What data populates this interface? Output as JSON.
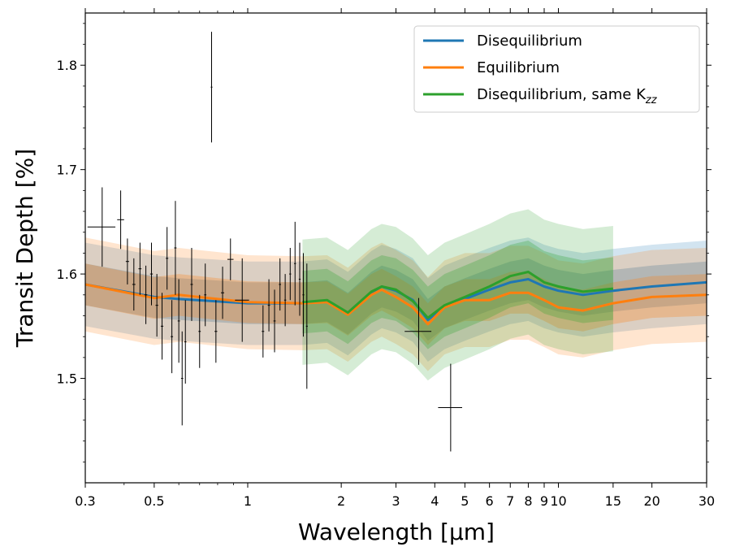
{
  "chart_data": {
    "type": "line",
    "x_scale": "log",
    "xlabel": "Wavelength [μm]",
    "ylabel": "Transit Depth [%]",
    "xlim": [
      0.3,
      30
    ],
    "ylim": [
      1.4,
      1.85
    ],
    "x_ticks": [
      {
        "value": 0.3,
        "label": "0.3"
      },
      {
        "value": 0.5,
        "label": "0.5"
      },
      {
        "value": 1,
        "label": "1"
      },
      {
        "value": 2,
        "label": "2"
      },
      {
        "value": 3,
        "label": "3"
      },
      {
        "value": 4,
        "label": "4"
      },
      {
        "value": 5,
        "label": "5"
      },
      {
        "value": 6,
        "label": "6"
      },
      {
        "value": 7,
        "label": "7"
      },
      {
        "value": 8,
        "label": "8"
      },
      {
        "value": 9,
        "label": "9"
      },
      {
        "value": 10,
        "label": "10"
      },
      {
        "value": 15,
        "label": "15"
      },
      {
        "value": 20,
        "label": "20"
      },
      {
        "value": 30,
        "label": "30"
      }
    ],
    "y_ticks": [
      {
        "value": 1.5,
        "label": "1.5"
      },
      {
        "value": 1.6,
        "label": "1.6"
      },
      {
        "value": 1.7,
        "label": "1.7"
      },
      {
        "value": 1.8,
        "label": "1.8"
      }
    ],
    "legend_position": "top-right",
    "series": [
      {
        "name": "Disequilibrium",
        "color": "#1f77b4",
        "x": [
          0.3,
          0.5,
          0.6,
          1.0,
          1.5,
          1.8,
          2.1,
          2.5,
          2.7,
          3.0,
          3.4,
          3.8,
          4.3,
          5.0,
          6.0,
          7.0,
          8.0,
          9.0,
          10.0,
          12.0,
          15.0,
          20.0,
          30.0
        ],
        "y": [
          1.59,
          1.578,
          1.576,
          1.572,
          1.572,
          1.574,
          1.562,
          1.582,
          1.588,
          1.584,
          1.575,
          1.556,
          1.568,
          1.576,
          1.585,
          1.592,
          1.595,
          1.588,
          1.584,
          1.58,
          1.584,
          1.588,
          1.592
        ],
        "band_inner": 0.02,
        "band_outer": 0.04
      },
      {
        "name": "Equilibrium",
        "color": "#ff7f0e",
        "x": [
          0.3,
          0.5,
          0.6,
          1.0,
          1.5,
          1.8,
          2.1,
          2.5,
          2.7,
          3.0,
          3.4,
          3.8,
          4.3,
          5.0,
          6.0,
          7.0,
          8.0,
          9.0,
          10.0,
          12.0,
          15.0,
          20.0,
          30.0
        ],
        "y": [
          1.59,
          1.577,
          1.58,
          1.573,
          1.572,
          1.573,
          1.561,
          1.58,
          1.585,
          1.578,
          1.568,
          1.552,
          1.568,
          1.575,
          1.575,
          1.582,
          1.582,
          1.575,
          1.568,
          1.565,
          1.572,
          1.578,
          1.58
        ],
        "band_inner": 0.02,
        "band_outer": 0.045
      },
      {
        "name": "Disequilibrium, same K",
        "name_sub": "zz",
        "color": "#2ca02c",
        "x": [
          1.5,
          1.8,
          2.1,
          2.5,
          2.7,
          3.0,
          3.4,
          3.8,
          4.3,
          5.0,
          6.0,
          7.0,
          8.0,
          9.0,
          10.0,
          12.0,
          15.0
        ],
        "y": [
          1.573,
          1.575,
          1.563,
          1.583,
          1.588,
          1.585,
          1.574,
          1.558,
          1.57,
          1.578,
          1.588,
          1.598,
          1.602,
          1.592,
          1.588,
          1.583,
          1.586
        ],
        "band_inner": 0.03,
        "band_outer": 0.06
      }
    ],
    "observations": [
      {
        "x": 0.34,
        "y": 1.645,
        "xerr": 0.035,
        "yerr": 0.038
      },
      {
        "x": 0.39,
        "y": 1.652,
        "xerr": 0.01,
        "yerr": 0.028
      },
      {
        "x": 0.41,
        "y": 1.612,
        "xerr": 0.005,
        "yerr": 0.022
      },
      {
        "x": 0.43,
        "y": 1.59,
        "xerr": 0.005,
        "yerr": 0.025
      },
      {
        "x": 0.45,
        "y": 1.605,
        "xerr": 0.005,
        "yerr": 0.025
      },
      {
        "x": 0.47,
        "y": 1.58,
        "xerr": 0.005,
        "yerr": 0.028
      },
      {
        "x": 0.49,
        "y": 1.6,
        "xerr": 0.005,
        "yerr": 0.03
      },
      {
        "x": 0.51,
        "y": 1.57,
        "xerr": 0.005,
        "yerr": 0.03
      },
      {
        "x": 0.53,
        "y": 1.55,
        "xerr": 0.005,
        "yerr": 0.032
      },
      {
        "x": 0.55,
        "y": 1.615,
        "xerr": 0.005,
        "yerr": 0.03
      },
      {
        "x": 0.57,
        "y": 1.54,
        "xerr": 0.005,
        "yerr": 0.035
      },
      {
        "x": 0.585,
        "y": 1.625,
        "xerr": 0.005,
        "yerr": 0.045
      },
      {
        "x": 0.6,
        "y": 1.555,
        "xerr": 0.005,
        "yerr": 0.04
      },
      {
        "x": 0.615,
        "y": 1.5,
        "xerr": 0.005,
        "yerr": 0.045
      },
      {
        "x": 0.63,
        "y": 1.535,
        "xerr": 0.005,
        "yerr": 0.04
      },
      {
        "x": 0.66,
        "y": 1.59,
        "xerr": 0.006,
        "yerr": 0.035
      },
      {
        "x": 0.7,
        "y": 1.545,
        "xerr": 0.006,
        "yerr": 0.035
      },
      {
        "x": 0.73,
        "y": 1.58,
        "xerr": 0.006,
        "yerr": 0.03
      },
      {
        "x": 0.765,
        "y": 1.779,
        "xerr": 0.005,
        "yerr": 0.053
      },
      {
        "x": 0.79,
        "y": 1.545,
        "xerr": 0.008,
        "yerr": 0.03
      },
      {
        "x": 0.83,
        "y": 1.582,
        "xerr": 0.01,
        "yerr": 0.025
      },
      {
        "x": 0.88,
        "y": 1.614,
        "xerr": 0.02,
        "yerr": 0.02
      },
      {
        "x": 0.96,
        "y": 1.575,
        "xerr": 0.05,
        "yerr": 0.04
      },
      {
        "x": 1.12,
        "y": 1.545,
        "xerr": 0.01,
        "yerr": 0.025
      },
      {
        "x": 1.17,
        "y": 1.57,
        "xerr": 0.01,
        "yerr": 0.025
      },
      {
        "x": 1.22,
        "y": 1.555,
        "xerr": 0.01,
        "yerr": 0.03
      },
      {
        "x": 1.27,
        "y": 1.59,
        "xerr": 0.01,
        "yerr": 0.025
      },
      {
        "x": 1.32,
        "y": 1.575,
        "xerr": 0.01,
        "yerr": 0.025
      },
      {
        "x": 1.37,
        "y": 1.6,
        "xerr": 0.01,
        "yerr": 0.025
      },
      {
        "x": 1.42,
        "y": 1.61,
        "xerr": 0.01,
        "yerr": 0.04
      },
      {
        "x": 1.47,
        "y": 1.595,
        "xerr": 0.01,
        "yerr": 0.035
      },
      {
        "x": 1.51,
        "y": 1.58,
        "xerr": 0.01,
        "yerr": 0.04
      },
      {
        "x": 1.55,
        "y": 1.55,
        "xerr": 0.01,
        "yerr": 0.06
      },
      {
        "x": 3.55,
        "y": 1.545,
        "xerr": 0.35,
        "yerr": 0.032
      },
      {
        "x": 4.5,
        "y": 1.472,
        "xerr": 0.4,
        "yerr": 0.042
      }
    ]
  }
}
